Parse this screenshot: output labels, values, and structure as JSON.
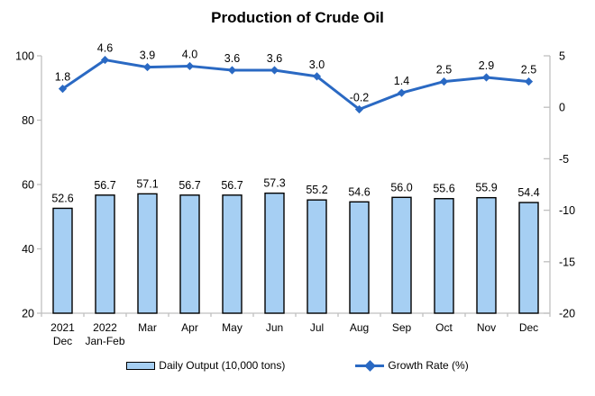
{
  "title": "Production of Crude Oil",
  "legend": {
    "bar_label": "Daily Output (10,000 tons)",
    "line_label": "Growth Rate (%)"
  },
  "colors": {
    "bar_fill": "#A6CFF3",
    "bar_border": "#000000",
    "line": "#2A69C3",
    "axis": "#BFBFBF",
    "text": "#000000"
  },
  "chart_data": {
    "type": "combo",
    "title": "Production of Crude Oil",
    "categories": [
      [
        "2021",
        "Dec"
      ],
      [
        "2022",
        "Jan-Feb"
      ],
      [
        "Mar"
      ],
      [
        "Apr"
      ],
      [
        "May"
      ],
      [
        "Jun"
      ],
      [
        "Jul"
      ],
      [
        "Aug"
      ],
      [
        "Sep"
      ],
      [
        "Oct"
      ],
      [
        "Nov"
      ],
      [
        "Dec"
      ]
    ],
    "series": [
      {
        "name": "Daily Output (10,000 tons)",
        "type": "bar",
        "axis": "left",
        "values": [
          52.6,
          56.7,
          57.1,
          56.7,
          56.7,
          57.3,
          55.2,
          54.6,
          56.0,
          55.6,
          55.9,
          54.4
        ]
      },
      {
        "name": "Growth Rate (%)",
        "type": "line",
        "axis": "right",
        "values": [
          1.8,
          4.6,
          3.9,
          4.0,
          3.6,
          3.6,
          3.0,
          -0.2,
          1.4,
          2.5,
          2.9,
          2.5
        ]
      }
    ],
    "left_axis": {
      "min": 20,
      "max": 100,
      "ticks": [
        20,
        40,
        60,
        80,
        100
      ]
    },
    "right_axis": {
      "min": -20,
      "max": 5,
      "ticks": [
        5,
        0,
        -5,
        -10,
        -15,
        -20
      ]
    },
    "grid": false,
    "data_labels": true,
    "legend_position": "bottom"
  }
}
